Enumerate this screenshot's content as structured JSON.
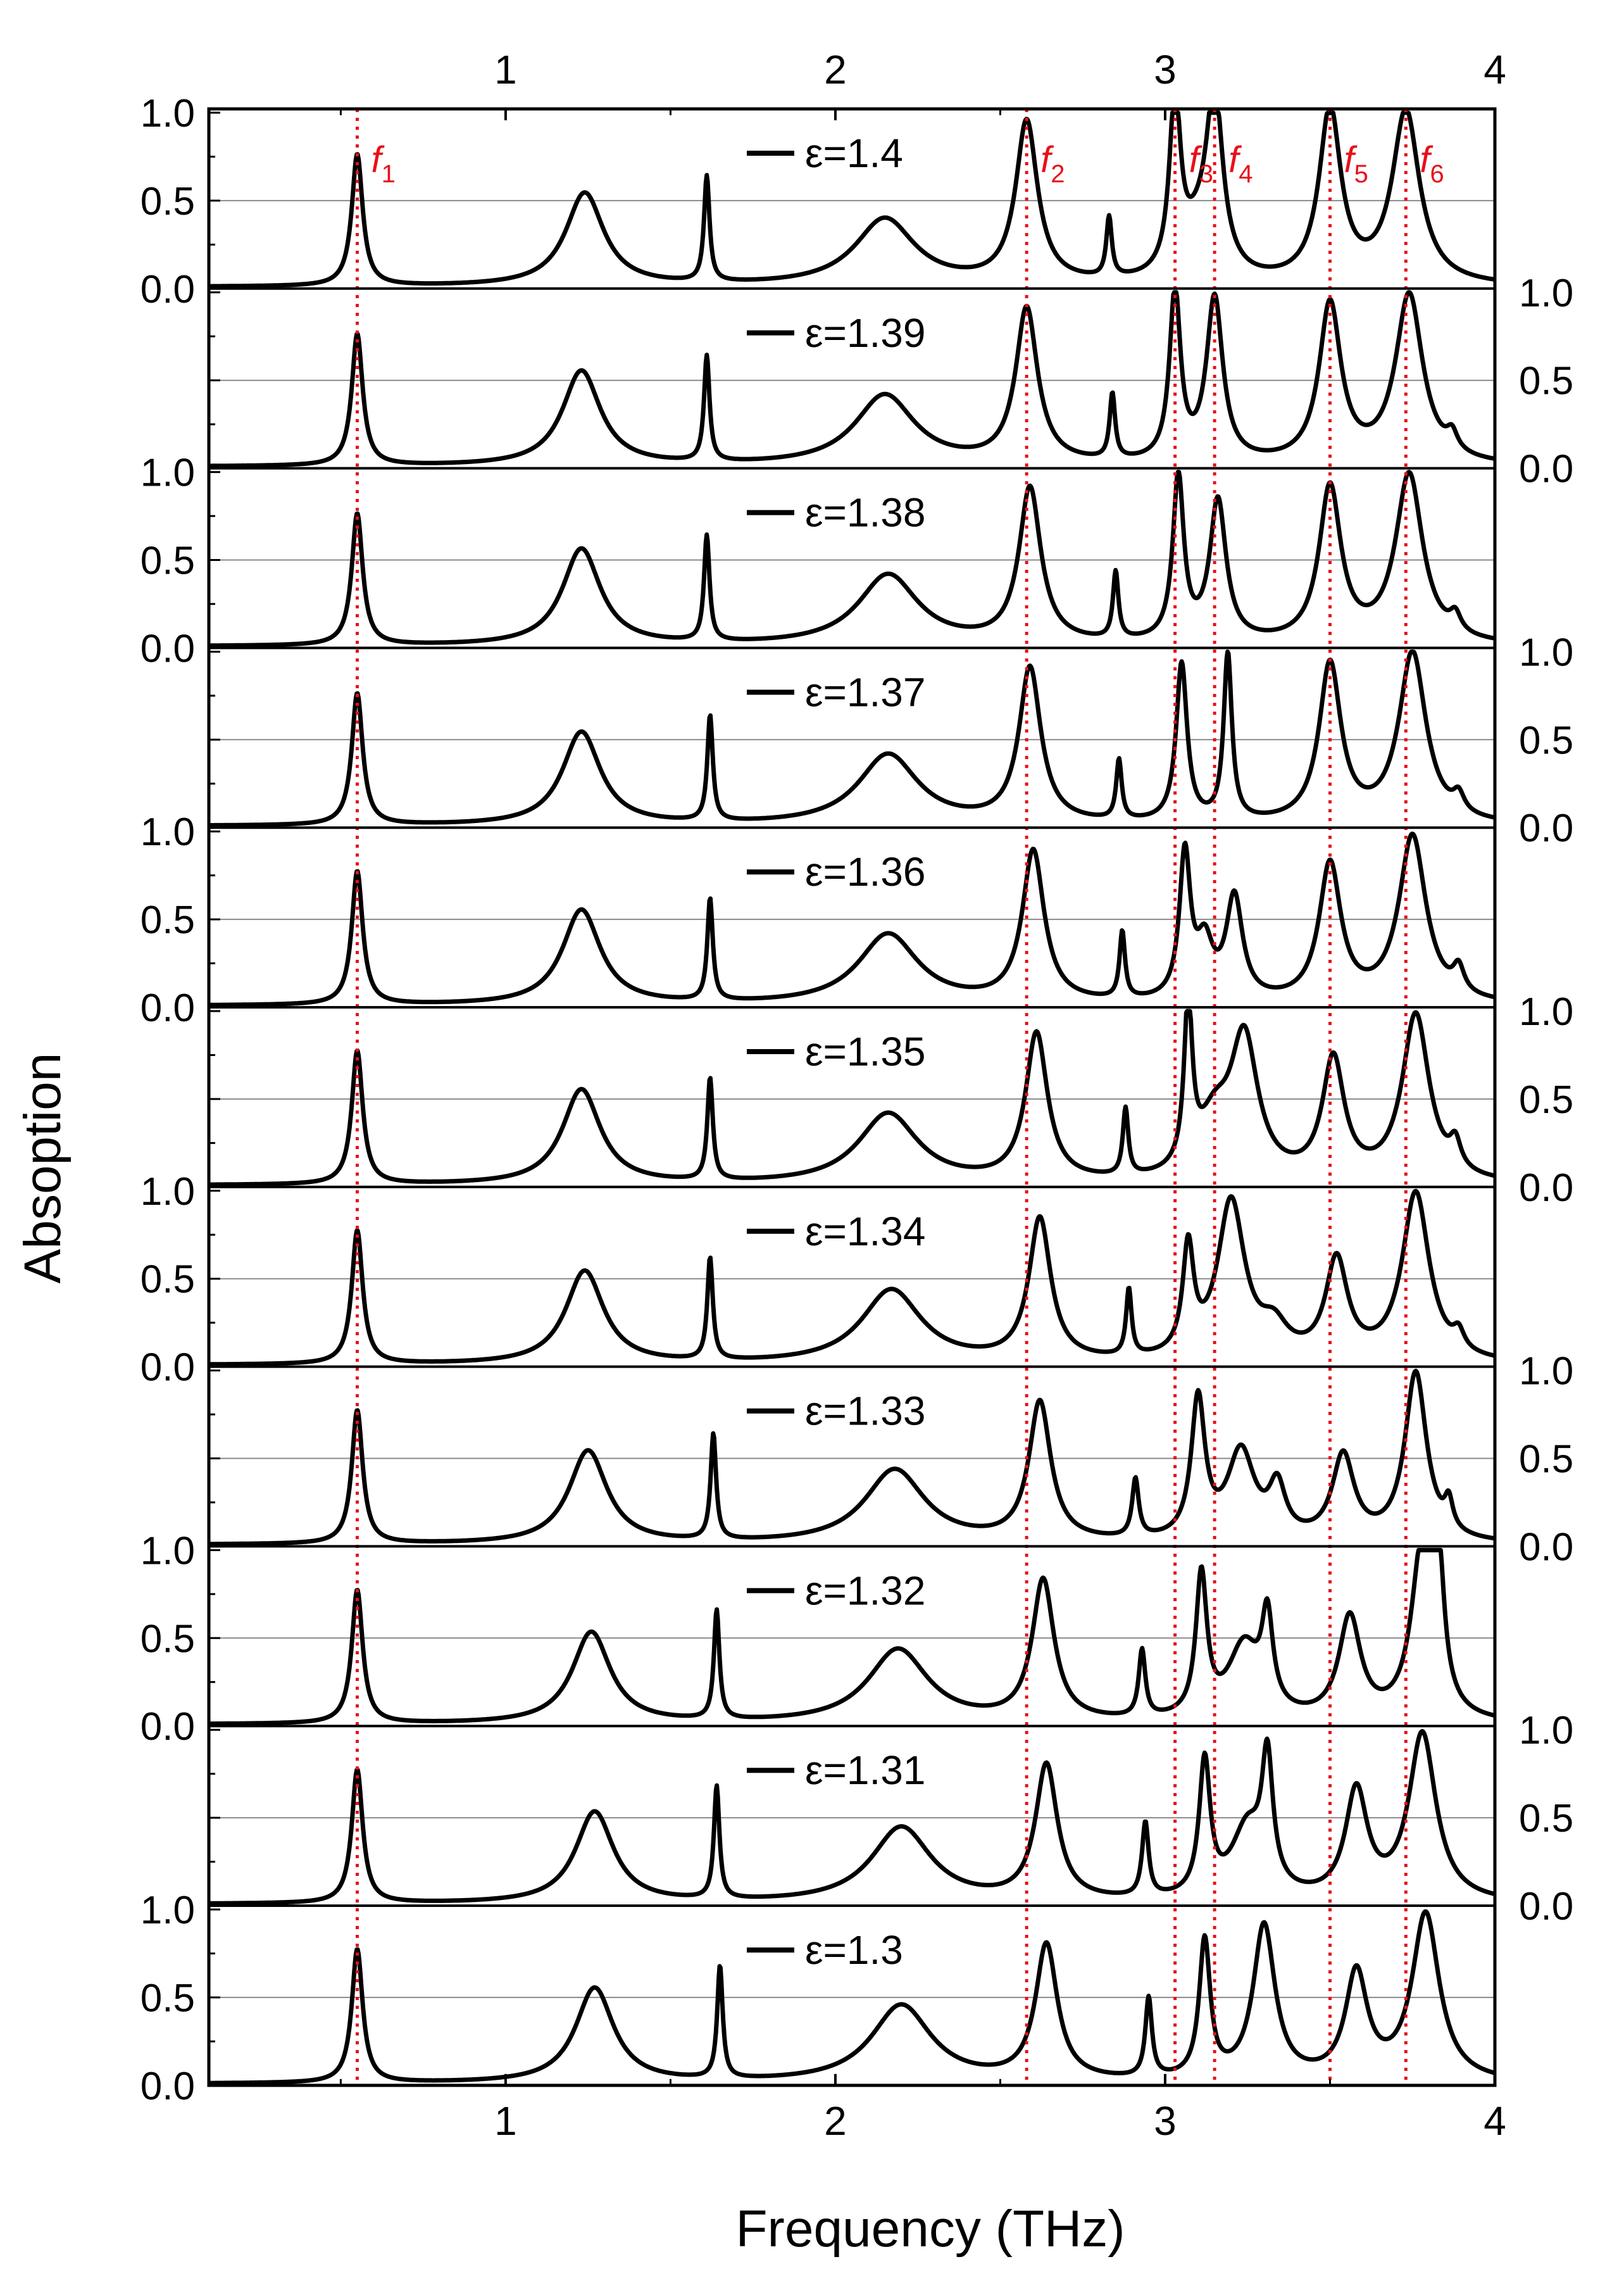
{
  "chart_data": {
    "type": "line",
    "xlabel": "Frequency (THz)",
    "ylabel": "Absoption",
    "xlim": [
      0.1,
      4.0
    ],
    "ylim": [
      0,
      1
    ],
    "x_ticks": [
      1,
      2,
      3,
      4
    ],
    "x_tick_labels": [
      "1",
      "2",
      "3",
      "4"
    ],
    "y_ticks": [
      0,
      0.5,
      1.0
    ],
    "y_tick_labels": [
      "0.0",
      "0.5",
      "1.0"
    ],
    "grid": "horizontal line at 0.5 in each panel",
    "marker_lines": [
      {
        "name": "f1",
        "label": "f",
        "sub": "1",
        "x": 0.55
      },
      {
        "name": "f2",
        "label": "f",
        "sub": "2",
        "x": 2.58
      },
      {
        "name": "f3",
        "label": "f",
        "sub": "3",
        "x": 3.03
      },
      {
        "name": "f4",
        "label": "f",
        "sub": "4",
        "x": 3.15
      },
      {
        "name": "f5",
        "label": "f",
        "sub": "5",
        "x": 3.5
      },
      {
        "name": "f6",
        "label": "f",
        "sub": "6",
        "x": 3.73
      }
    ],
    "marker_color": "#e8101a",
    "line_color": "#000000",
    "series": [
      {
        "name": "ε=1.4",
        "eps": 1.4,
        "peaks": [
          [
            0.55,
            0.75,
            0.02
          ],
          [
            1.24,
            0.53,
            0.07
          ],
          [
            1.61,
            0.6,
            0.01
          ],
          [
            2.15,
            0.38,
            0.11
          ],
          [
            2.58,
            0.92,
            0.04
          ],
          [
            2.83,
            0.34,
            0.01
          ],
          [
            3.03,
            0.99,
            0.02
          ],
          [
            3.1,
            0.22,
            0.06
          ],
          [
            3.15,
            0.99,
            0.03
          ],
          [
            3.5,
            0.98,
            0.04
          ],
          [
            3.73,
            0.98,
            0.05
          ]
        ]
      },
      {
        "name": "ε=1.39",
        "eps": 1.39,
        "peaks": [
          [
            0.55,
            0.75,
            0.02
          ],
          [
            1.23,
            0.54,
            0.07
          ],
          [
            1.61,
            0.6,
            0.01
          ],
          [
            2.15,
            0.4,
            0.11
          ],
          [
            2.58,
            0.88,
            0.04
          ],
          [
            2.84,
            0.37,
            0.01
          ],
          [
            3.03,
            0.96,
            0.02
          ],
          [
            3.15,
            0.93,
            0.03
          ],
          [
            3.5,
            0.9,
            0.04
          ],
          [
            3.74,
            0.96,
            0.05
          ],
          [
            3.87,
            0.1,
            0.02
          ]
        ]
      },
      {
        "name": "ε=1.38",
        "eps": 1.38,
        "peaks": [
          [
            0.55,
            0.75,
            0.02
          ],
          [
            1.23,
            0.55,
            0.07
          ],
          [
            1.61,
            0.6,
            0.01
          ],
          [
            2.16,
            0.4,
            0.11
          ],
          [
            2.59,
            0.88,
            0.04
          ],
          [
            2.85,
            0.38,
            0.01
          ],
          [
            3.04,
            0.93,
            0.02
          ],
          [
            3.16,
            0.8,
            0.03
          ],
          [
            3.5,
            0.88,
            0.04
          ],
          [
            3.74,
            0.96,
            0.05
          ],
          [
            3.88,
            0.1,
            0.02
          ]
        ]
      },
      {
        "name": "ε=1.37",
        "eps": 1.37,
        "peaks": [
          [
            0.55,
            0.75,
            0.02
          ],
          [
            1.23,
            0.53,
            0.07
          ],
          [
            1.62,
            0.6,
            0.01
          ],
          [
            2.16,
            0.4,
            0.11
          ],
          [
            2.59,
            0.88,
            0.04
          ],
          [
            2.86,
            0.34,
            0.01
          ],
          [
            3.05,
            0.9,
            0.02
          ],
          [
            3.19,
            0.95,
            0.015
          ],
          [
            3.5,
            0.9,
            0.04
          ],
          [
            3.75,
            0.97,
            0.05
          ],
          [
            3.89,
            0.1,
            0.02
          ]
        ]
      },
      {
        "name": "ε=1.36",
        "eps": 1.36,
        "peaks": [
          [
            0.55,
            0.76,
            0.02
          ],
          [
            1.23,
            0.54,
            0.07
          ],
          [
            1.62,
            0.58,
            0.01
          ],
          [
            2.16,
            0.4,
            0.11
          ],
          [
            2.6,
            0.86,
            0.04
          ],
          [
            2.87,
            0.38,
            0.01
          ],
          [
            3.06,
            0.82,
            0.02
          ],
          [
            3.12,
            0.3,
            0.03
          ],
          [
            3.21,
            0.58,
            0.03
          ],
          [
            3.5,
            0.78,
            0.04
          ],
          [
            3.75,
            0.95,
            0.05
          ],
          [
            3.89,
            0.14,
            0.02
          ]
        ]
      },
      {
        "name": "ε=1.35",
        "eps": 1.35,
        "peaks": [
          [
            0.55,
            0.76,
            0.02
          ],
          [
            1.23,
            0.54,
            0.07
          ],
          [
            1.62,
            0.58,
            0.01
          ],
          [
            2.16,
            0.4,
            0.11
          ],
          [
            2.61,
            0.84,
            0.04
          ],
          [
            2.88,
            0.38,
            0.01
          ],
          [
            3.07,
            0.93,
            0.015
          ],
          [
            3.24,
            0.78,
            0.05
          ],
          [
            3.15,
            0.3,
            0.06
          ],
          [
            3.51,
            0.68,
            0.04
          ],
          [
            3.76,
            0.95,
            0.05
          ],
          [
            3.88,
            0.15,
            0.02
          ]
        ]
      },
      {
        "name": "ε=1.34",
        "eps": 1.34,
        "peaks": [
          [
            0.55,
            0.76,
            0.02
          ],
          [
            1.24,
            0.53,
            0.07
          ],
          [
            1.62,
            0.58,
            0.01
          ],
          [
            2.17,
            0.42,
            0.11
          ],
          [
            2.62,
            0.81,
            0.04
          ],
          [
            2.89,
            0.38,
            0.01
          ],
          [
            3.07,
            0.6,
            0.02
          ],
          [
            3.2,
            0.9,
            0.05
          ],
          [
            3.33,
            0.16,
            0.05
          ],
          [
            3.52,
            0.56,
            0.04
          ],
          [
            3.76,
            0.96,
            0.05
          ],
          [
            3.89,
            0.1,
            0.02
          ]
        ]
      },
      {
        "name": "ε=1.33",
        "eps": 1.33,
        "peaks": [
          [
            0.55,
            0.76,
            0.02
          ],
          [
            1.25,
            0.53,
            0.07
          ],
          [
            1.63,
            0.6,
            0.01
          ],
          [
            2.18,
            0.42,
            0.11
          ],
          [
            2.62,
            0.79,
            0.04
          ],
          [
            2.91,
            0.33,
            0.012
          ],
          [
            3.1,
            0.79,
            0.025
          ],
          [
            3.23,
            0.5,
            0.05
          ],
          [
            3.34,
            0.28,
            0.03
          ],
          [
            3.54,
            0.48,
            0.04
          ],
          [
            3.76,
            0.96,
            0.04
          ],
          [
            3.86,
            0.16,
            0.015
          ]
        ]
      },
      {
        "name": "ε=1.32",
        "eps": 1.32,
        "peaks": [
          [
            0.55,
            0.76,
            0.02
          ],
          [
            1.26,
            0.52,
            0.07
          ],
          [
            1.64,
            0.62,
            0.01
          ],
          [
            2.19,
            0.42,
            0.11
          ],
          [
            2.63,
            0.8,
            0.04
          ],
          [
            2.93,
            0.38,
            0.012
          ],
          [
            3.11,
            0.8,
            0.02
          ],
          [
            3.24,
            0.42,
            0.06
          ],
          [
            3.31,
            0.5,
            0.02
          ],
          [
            3.56,
            0.58,
            0.04
          ],
          [
            3.78,
            0.98,
            0.04
          ],
          [
            3.83,
            0.7,
            0.02
          ]
        ]
      },
      {
        "name": "ε=1.31",
        "eps": 1.31,
        "peaks": [
          [
            0.55,
            0.76,
            0.02
          ],
          [
            1.27,
            0.52,
            0.07
          ],
          [
            1.64,
            0.64,
            0.01
          ],
          [
            2.2,
            0.43,
            0.11
          ],
          [
            2.64,
            0.77,
            0.04
          ],
          [
            2.94,
            0.42,
            0.012
          ],
          [
            3.12,
            0.76,
            0.02
          ],
          [
            3.25,
            0.4,
            0.06
          ],
          [
            3.31,
            0.7,
            0.02
          ],
          [
            3.58,
            0.61,
            0.04
          ],
          [
            3.78,
            0.95,
            0.05
          ]
        ]
      },
      {
        "name": "ε=1.3",
        "eps": 1.3,
        "peaks": [
          [
            0.55,
            0.76,
            0.02
          ],
          [
            1.27,
            0.54,
            0.07
          ],
          [
            1.65,
            0.64,
            0.01
          ],
          [
            2.2,
            0.44,
            0.11
          ],
          [
            2.64,
            0.77,
            0.04
          ],
          [
            2.95,
            0.45,
            0.012
          ],
          [
            3.12,
            0.78,
            0.02
          ],
          [
            3.3,
            0.88,
            0.04
          ],
          [
            3.58,
            0.6,
            0.04
          ],
          [
            3.79,
            0.95,
            0.05
          ]
        ]
      }
    ]
  }
}
